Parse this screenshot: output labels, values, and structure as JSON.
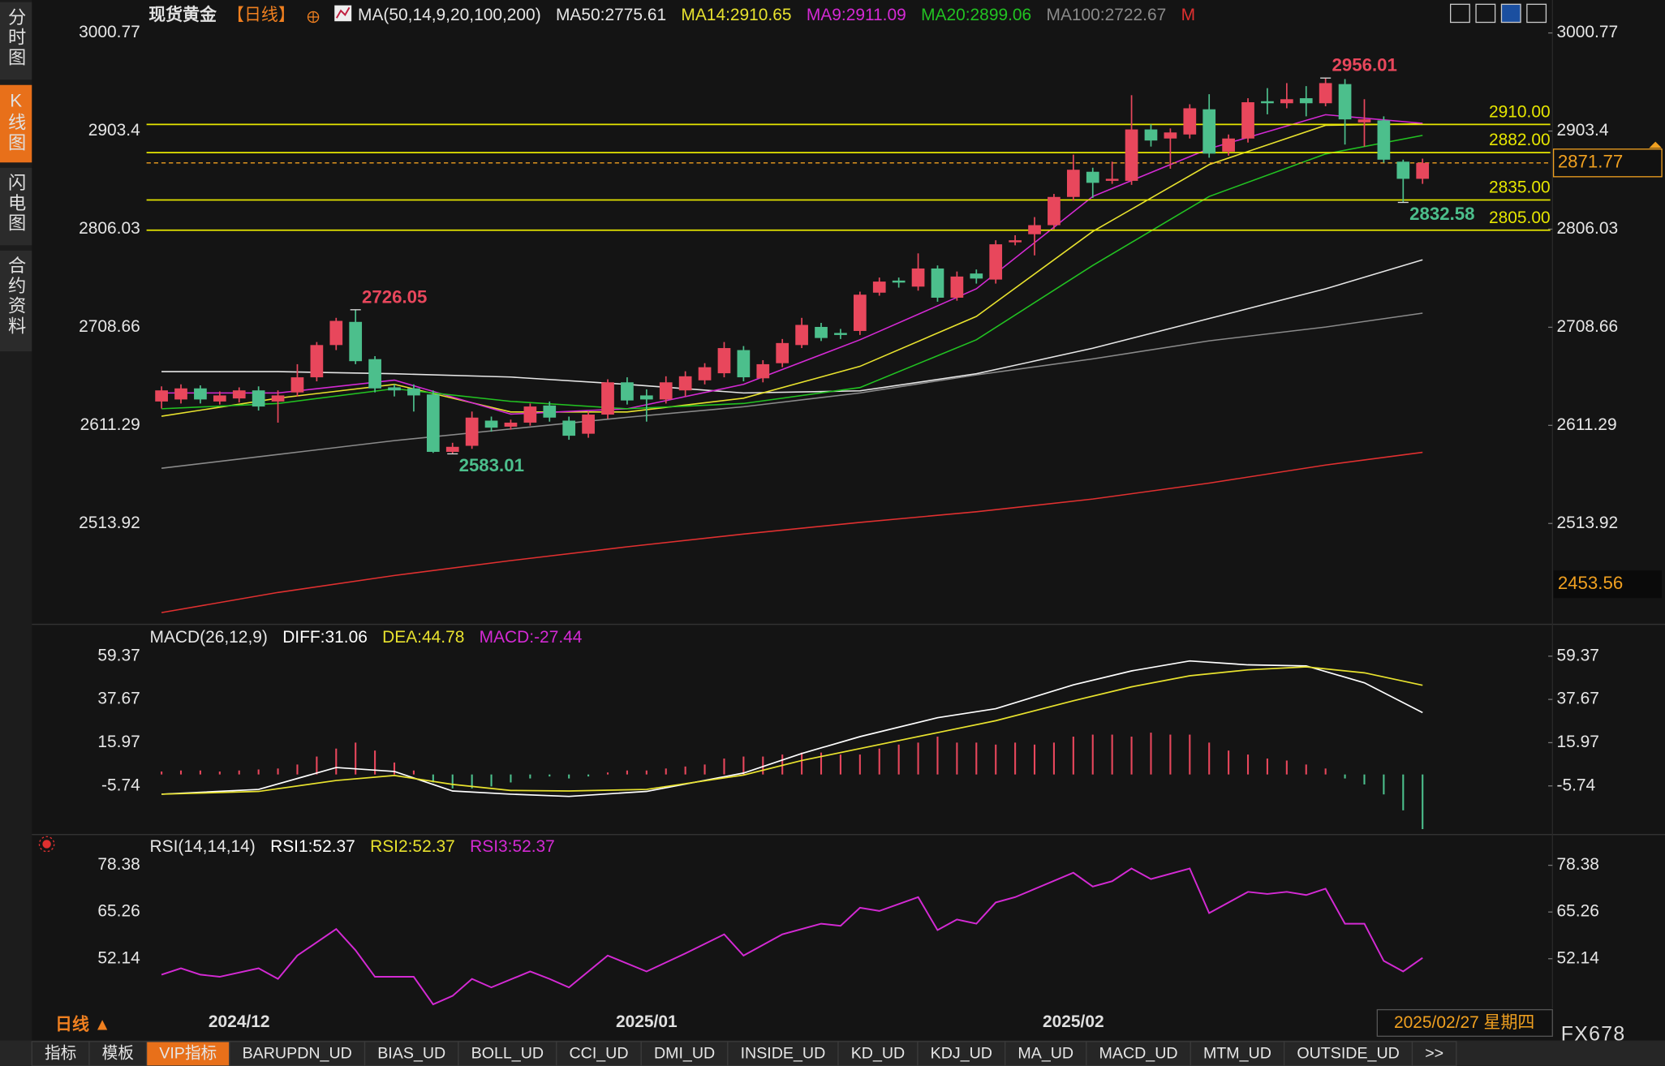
{
  "sidebar": [
    "分时图",
    "K线图",
    "闪电图",
    "合约资料"
  ],
  "toolbar": {
    "symbol": "现货黄金",
    "period": "【日线】"
  },
  "footer": {
    "period": "日线 ▲",
    "date": "2025/02/27 星期四",
    "brand": "FX678"
  },
  "tabs": [
    "指标",
    "模板",
    "VIP指标",
    "BARUPDN_UD",
    "BIAS_UD",
    "BOLL_UD",
    "CCI_UD",
    "DMI_UD",
    "INSIDE_UD",
    "KD_UD",
    "KDJ_UD",
    "MA_UD",
    "MACD_UD",
    "MTM_UD",
    "OUTSIDE_UD",
    ">>"
  ],
  "chart_data": [
    {
      "type": "candlestick",
      "title": "MA(50,14,9,20,100,200)",
      "categories": [
        null,
        null,
        null,
        null,
        "2024/12",
        null,
        null,
        null,
        null,
        null,
        null,
        null,
        null,
        null,
        null,
        null,
        null,
        null,
        null,
        null,
        null,
        null,
        null,
        null,
        null,
        "2025/01",
        null,
        null,
        null,
        null,
        null,
        null,
        null,
        null,
        null,
        null,
        null,
        null,
        null,
        null,
        null,
        null,
        null,
        null,
        null,
        null,
        null,
        "2025/02",
        null,
        null,
        null,
        null,
        null,
        null,
        null,
        null,
        null,
        null,
        null,
        null,
        null,
        null,
        null,
        null,
        null,
        null
      ],
      "open": [
        2635,
        2637,
        2648,
        2635,
        2638,
        2646,
        2635,
        2644,
        2659,
        2691,
        2714,
        2677,
        2649,
        2648,
        2642,
        2585,
        2591,
        2616,
        2610,
        2614,
        2631,
        2616,
        2603,
        2622,
        2654,
        2641,
        2637,
        2646,
        2656,
        2663,
        2686,
        2658,
        2673,
        2691,
        2709,
        2703,
        2705,
        2743,
        2755,
        2749,
        2767,
        2738,
        2762,
        2756,
        2793,
        2801,
        2810,
        2838,
        2863,
        2854,
        2854,
        2905,
        2896,
        2900,
        2925,
        2883,
        2896,
        2933,
        2931,
        2936,
        2931,
        2950,
        2912,
        2914,
        2873,
        2856
      ],
      "high": [
        2650,
        2652,
        2651,
        2645,
        2649,
        2650,
        2646,
        2672,
        2694,
        2718,
        2726.05,
        2680,
        2652,
        2652,
        2646,
        2594,
        2625,
        2620,
        2617,
        2633,
        2635,
        2620,
        2625,
        2657,
        2659,
        2647,
        2660,
        2665,
        2673,
        2694,
        2690,
        2676,
        2697,
        2718,
        2713,
        2707,
        2744,
        2758,
        2758,
        2782,
        2770,
        2764,
        2766,
        2795,
        2800,
        2818,
        2841,
        2880,
        2867,
        2873,
        2939,
        2910,
        2906,
        2930,
        2940,
        2900,
        2936,
        2946,
        2951,
        2948,
        2956.01,
        2955,
        2935,
        2918,
        2875,
        2876
      ],
      "low": [
        2628,
        2633,
        2633,
        2632,
        2634,
        2626,
        2614,
        2640,
        2655,
        2686,
        2672,
        2644,
        2640,
        2625,
        2584,
        2583.01,
        2588,
        2605,
        2607,
        2611,
        2615,
        2597,
        2599,
        2618,
        2632,
        2615,
        2633,
        2640,
        2652,
        2659,
        2655,
        2654,
        2669,
        2688,
        2695,
        2697,
        2701,
        2740,
        2748,
        2745,
        2734,
        2735,
        2752,
        2752,
        2790,
        2780,
        2806,
        2834,
        2837,
        2851,
        2850,
        2888,
        2866,
        2896,
        2877,
        2879,
        2892,
        2920,
        2926,
        2918,
        2928,
        2890,
        2888,
        2872,
        2832.58,
        2851
      ],
      "close": [
        2646,
        2648,
        2637,
        2641,
        2646,
        2630,
        2641,
        2659,
        2691,
        2715,
        2675,
        2648,
        2646,
        2641,
        2585,
        2590,
        2619,
        2609,
        2614,
        2630,
        2619,
        2601,
        2622,
        2654,
        2636,
        2637,
        2654,
        2660,
        2669,
        2688,
        2659,
        2672,
        2693,
        2711,
        2698,
        2701,
        2741,
        2754,
        2753,
        2767,
        2738,
        2759,
        2757,
        2791,
        2795,
        2810,
        2838,
        2865,
        2852,
        2856,
        2905,
        2894,
        2902,
        2926,
        2881,
        2896,
        2932,
        2931,
        2935,
        2931,
        2951,
        2915,
        2915,
        2875,
        2856,
        2871.77
      ],
      "up_color": "#e8475c",
      "down_color": "#4cbf8c",
      "series": [
        {
          "name": "MA50:2775.61",
          "color": "#e6e6e6",
          "x": [
            0,
            6,
            12,
            18,
            24,
            30,
            36,
            42,
            48,
            54,
            60,
            65
          ],
          "values": [
            2664.6,
            2664.6,
            2662.5,
            2659.3,
            2652.0,
            2643.5,
            2645.6,
            2662.5,
            2687.8,
            2717.3,
            2746.8,
            2775.61
          ]
        },
        {
          "name": "MA14:2910.65",
          "color": "#e8e22e",
          "x": [
            0,
            6,
            12,
            18,
            24,
            30,
            36,
            42,
            48,
            54,
            60,
            65
          ],
          "values": [
            2620.4,
            2638.3,
            2652.0,
            2624.6,
            2624.6,
            2638.3,
            2669.9,
            2719.4,
            2803.7,
            2870.1,
            2909.1,
            2910.65
          ]
        },
        {
          "name": "MA9:2911.09",
          "color": "#d42ad4",
          "x": [
            0,
            6,
            12,
            18,
            24,
            30,
            36,
            42,
            48,
            54,
            60,
            65
          ],
          "values": [
            2643.5,
            2643.5,
            2656.2,
            2622.5,
            2627.7,
            2652.0,
            2696.2,
            2746.8,
            2838.5,
            2885.9,
            2919.6,
            2911.09
          ]
        },
        {
          "name": "MA20:2899.06",
          "color": "#22c222",
          "x": [
            0,
            6,
            12,
            18,
            24,
            30,
            36,
            42,
            48,
            54,
            60,
            65
          ],
          "values": [
            2627.7,
            2633.0,
            2647.7,
            2635.1,
            2627.7,
            2633.0,
            2648.8,
            2696.2,
            2770.0,
            2838.5,
            2880.6,
            2899.06
          ]
        },
        {
          "name": "MA100:2722.67",
          "color": "#8a8a8a",
          "x": [
            0,
            6,
            12,
            18,
            24,
            30,
            36,
            42,
            48,
            54,
            60,
            65
          ],
          "values": [
            2568.7,
            2582.4,
            2596.1,
            2607.7,
            2619.3,
            2629.8,
            2643.5,
            2661.4,
            2677.3,
            2695.2,
            2708.9,
            2722.67
          ]
        },
        {
          "name": "M",
          "color": "#e03030",
          "x": [
            0,
            6,
            12,
            18,
            24,
            30,
            36,
            42,
            48,
            54,
            60,
            65
          ],
          "values": [
            2425.4,
            2445.4,
            2462.3,
            2477.1,
            2490.8,
            2503.4,
            2515.0,
            2525.5,
            2538.2,
            2554.0,
            2571.9,
            2584.5
          ]
        }
      ],
      "levels": [
        {
          "value": 2910,
          "label": "2910.00"
        },
        {
          "value": 2882,
          "label": "2882.00"
        },
        {
          "value": 2835,
          "label": "2835.00"
        },
        {
          "value": 2805,
          "label": "2805.00"
        }
      ],
      "level_color": "#e6e600",
      "current_price": 2871.77,
      "current_color": "#f0a020",
      "low_marker": 2453.56,
      "extremes": [
        2956.01,
        2726.05,
        2583.01,
        2832.58
      ],
      "ylim": [
        2417.0,
        3012.36
      ],
      "yticks": [
        3000.77,
        2903.4,
        2806.03,
        2708.66,
        2611.29,
        2513.92
      ]
    },
    {
      "type": "macd",
      "title": "MACD(26,12,9)",
      "up_color": "#e8475c",
      "down_color": "#4cbf8c",
      "series": [
        {
          "name": "DIFF:31.06",
          "color": "#ffffff",
          "x": [
            0,
            5,
            9,
            12,
            15,
            18,
            21,
            25,
            30,
            33,
            36,
            40,
            43,
            47,
            50,
            53,
            56,
            59,
            62,
            65
          ],
          "values": [
            -9.9,
            -7.5,
            3.5,
            1.5,
            -8.3,
            -9.9,
            -11,
            -8.5,
            0.7,
            10.5,
            19,
            28.5,
            33,
            45,
            52,
            57,
            55,
            54.5,
            46,
            31.06
          ]
        },
        {
          "name": "DEA:44.78",
          "color": "#e8e22e",
          "x": [
            0,
            5,
            9,
            12,
            15,
            18,
            21,
            25,
            30,
            33,
            36,
            40,
            43,
            47,
            50,
            53,
            56,
            59,
            62,
            65
          ],
          "values": [
            -9.9,
            -8.5,
            -3,
            -0.5,
            -5,
            -8,
            -8.3,
            -7.5,
            -0.3,
            7,
            13,
            21,
            27,
            37,
            44,
            49.5,
            52.5,
            54,
            51,
            44.78
          ]
        },
        {
          "name": "MACD:-27.44",
          "color": "#d42ad4",
          "values": [
            1.5,
            2,
            2,
            1.5,
            2,
            2.5,
            3,
            5,
            9,
            13,
            16,
            12,
            6,
            2,
            -4,
            -7,
            -7,
            -6,
            -4,
            -2,
            -1,
            -2,
            -1,
            1,
            2,
            2,
            3,
            4,
            5,
            8,
            9,
            9,
            10,
            11,
            11,
            10,
            10,
            13,
            15,
            16,
            19,
            16,
            16,
            15,
            16,
            15,
            16,
            19,
            20,
            20,
            19,
            21,
            20,
            20,
            16,
            12,
            10,
            8,
            7,
            5,
            3,
            -2,
            -5,
            -10,
            -18,
            -27.44
          ]
        }
      ],
      "ylim": [
        -29.6,
        74.3
      ],
      "yticks": [
        59.37,
        37.67,
        15.97,
        -5.74
      ]
    },
    {
      "type": "line",
      "title": "RSI(14,14,14)",
      "legend": [
        {
          "name": "RSI1:52.37",
          "color": "#ffffff"
        },
        {
          "name": "RSI2:52.37",
          "color": "#e8e22e"
        },
        {
          "name": "RSI3:52.37",
          "color": "#d42ad4"
        }
      ],
      "series": [
        {
          "color": "#d42ad4",
          "x": [
            0,
            1,
            2,
            3,
            5,
            6,
            7,
            9,
            10,
            11,
            13,
            14,
            15,
            16,
            17,
            19,
            20,
            21,
            23,
            25,
            27,
            29,
            30,
            32,
            34,
            35,
            36,
            37,
            39,
            40,
            41,
            42,
            43,
            44,
            47,
            48,
            49,
            50,
            51,
            53,
            54,
            56,
            57,
            58,
            59,
            60,
            61,
            62,
            63,
            64,
            65
          ],
          "values": [
            47.67,
            49.46,
            47.67,
            47.07,
            49.46,
            46.47,
            53.03,
            60.49,
            54.52,
            47.07,
            47.07,
            39.32,
            41.7,
            46.47,
            44.09,
            48.56,
            46.47,
            44.09,
            53.03,
            48.56,
            53.63,
            59,
            53.03,
            59,
            61.98,
            61.38,
            66.45,
            65.56,
            69.43,
            60.19,
            63.17,
            61.98,
            67.94,
            69.43,
            76.29,
            72.42,
            73.91,
            77.49,
            74.5,
            77.49,
            64.96,
            70.93,
            70.33,
            70.93,
            70.03,
            71.82,
            61.98,
            61.98,
            51.54,
            48.56,
            52.37
          ]
        }
      ],
      "ylim": [
        38.12,
        85.83
      ],
      "yticks": [
        78.38,
        65.26,
        52.14
      ]
    }
  ]
}
